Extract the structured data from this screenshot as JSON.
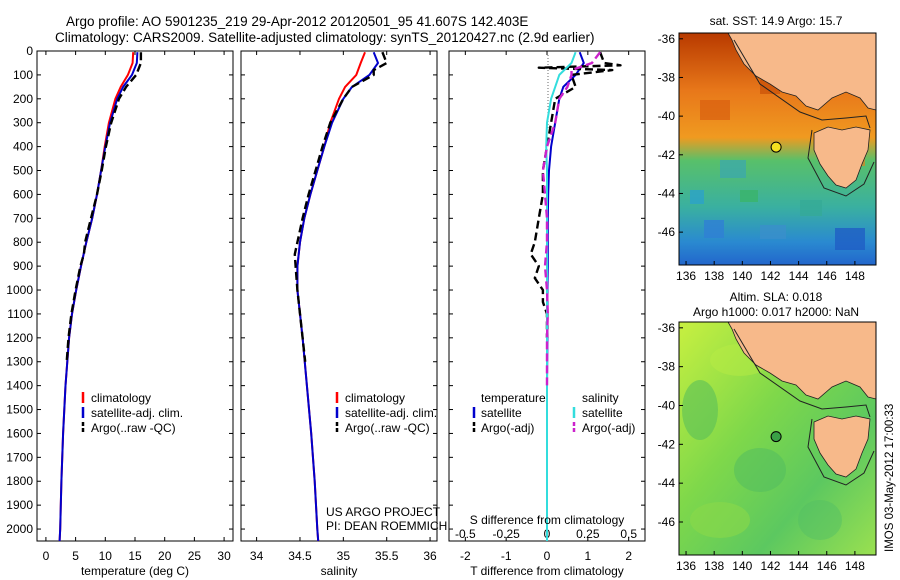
{
  "header": {
    "title_line1": "Argo profile: AO 5901235_219 29-Apr-2012 20120501_95 41.607S 142.403E",
    "title_line2": "Climatology: CARS2009. Satellite-adjusted climatology: synTS_20120427.nc (2.9d earlier)"
  },
  "footer": {
    "project_line1": "US ARGO PROJECT",
    "project_line2": "PI: DEAN ROEMMICH",
    "imos_stamp": "IMOS 03-May-2012 17:00:33"
  },
  "colors": {
    "climatology": "#ff0000",
    "satellite": "#0000cc",
    "argo": "#000000",
    "sal_satellite": "#33dddd",
    "sal_argo": "#cc22cc",
    "land": "#f7b98a"
  },
  "chart_data": [
    {
      "type": "line",
      "id": "temperature",
      "xlabel": "temperature (deg C)",
      "ylim": [
        2050,
        0
      ],
      "xlim": [
        -1.5,
        31.5
      ],
      "xticks": [
        0,
        5,
        10,
        15,
        20,
        25,
        30
      ],
      "yticks": [
        0,
        100,
        200,
        300,
        400,
        500,
        600,
        700,
        800,
        900,
        1000,
        1100,
        1200,
        1300,
        1400,
        1500,
        1600,
        1700,
        1800,
        1900,
        2000
      ],
      "legend": [
        "climatology",
        "satellite-adj. clim.",
        "Argo(..raw -QC)"
      ],
      "series": [
        {
          "name": "climatology",
          "color": "#ff0000",
          "dash": "none",
          "depth": [
            5,
            50,
            100,
            150,
            200,
            300,
            400,
            500,
            600,
            700,
            800,
            900,
            1000,
            1100,
            1200,
            1400,
            1600,
            1800,
            2000,
            2050
          ],
          "values": [
            14.7,
            14.6,
            13.8,
            12.6,
            11.7,
            10.6,
            9.9,
            9.3,
            8.6,
            7.8,
            6.8,
            5.9,
            5.1,
            4.4,
            3.9,
            3.3,
            2.9,
            2.6,
            2.4,
            2.3
          ]
        },
        {
          "name": "satellite-adj. clim.",
          "color": "#0000cc",
          "dash": "none",
          "depth": [
            5,
            50,
            100,
            150,
            200,
            300,
            400,
            500,
            600,
            700,
            800,
            900,
            1000,
            1100,
            1200,
            1400,
            1600,
            1800,
            2000,
            2050
          ],
          "values": [
            15.4,
            15.3,
            14.5,
            13.0,
            12.0,
            10.8,
            10.0,
            9.3,
            8.6,
            7.8,
            6.8,
            5.9,
            5.1,
            4.4,
            3.9,
            3.3,
            2.9,
            2.6,
            2.4,
            2.3
          ]
        },
        {
          "name": "Argo(..raw -QC)",
          "color": "#000000",
          "dash": "8,4",
          "depth": [
            5,
            50,
            100,
            150,
            200,
            300,
            400,
            500,
            600,
            700,
            800,
            850,
            900,
            1000,
            1100,
            1200,
            1300
          ],
          "values": [
            16.0,
            16.0,
            15.2,
            13.5,
            12.3,
            11.0,
            10.1,
            9.4,
            8.6,
            7.6,
            6.6,
            6.4,
            5.8,
            5.0,
            4.3,
            3.8,
            3.5
          ]
        }
      ]
    },
    {
      "type": "line",
      "id": "salinity",
      "xlabel": "salinity",
      "ylim": [
        2050,
        0
      ],
      "xlim": [
        33.82,
        36.08
      ],
      "xticks": [
        34,
        34.5,
        35,
        35.5,
        36
      ],
      "legend": [
        "climatology",
        "satellite-adj. clim.",
        "Argo(..raw -QC)"
      ],
      "series": [
        {
          "name": "climatology",
          "color": "#ff0000",
          "dash": "none",
          "depth": [
            5,
            50,
            100,
            150,
            200,
            300,
            400,
            500,
            600,
            700,
            800,
            900,
            1000,
            1100,
            1200,
            1400,
            1600,
            1800,
            2000,
            2050
          ],
          "values": [
            35.25,
            35.2,
            35.15,
            35.02,
            34.95,
            34.85,
            34.78,
            34.7,
            34.62,
            34.55,
            34.5,
            34.47,
            34.47,
            34.5,
            34.53,
            34.58,
            34.63,
            34.67,
            34.7,
            34.71
          ]
        },
        {
          "name": "satellite-adj. clim.",
          "color": "#0000cc",
          "dash": "none",
          "depth": [
            5,
            50,
            100,
            150,
            200,
            300,
            400,
            500,
            600,
            700,
            800,
            900,
            1000,
            1100,
            1200,
            1400,
            1600,
            1800,
            2000,
            2050
          ],
          "values": [
            35.35,
            35.4,
            35.3,
            35.1,
            35.0,
            34.87,
            34.78,
            34.7,
            34.62,
            34.55,
            34.5,
            34.47,
            34.47,
            34.5,
            34.53,
            34.58,
            34.63,
            34.67,
            34.7,
            34.71
          ]
        },
        {
          "name": "Argo(..raw -QC)",
          "color": "#000000",
          "dash": "8,4",
          "depth": [
            5,
            50,
            80,
            100,
            150,
            200,
            300,
            400,
            500,
            600,
            700,
            800,
            850,
            900,
            1000,
            1100,
            1200,
            1300
          ],
          "values": [
            35.45,
            35.5,
            35.35,
            35.35,
            35.1,
            35.0,
            34.85,
            34.76,
            34.68,
            34.6,
            34.53,
            34.47,
            34.44,
            34.45,
            34.47,
            34.5,
            34.53,
            34.56
          ]
        }
      ]
    },
    {
      "type": "line",
      "id": "difference",
      "xlabel": "T difference from climatology",
      "x2label": "S difference from climatology",
      "ylim": [
        2050,
        0
      ],
      "xlim": [
        -2.4,
        2.4
      ],
      "xticks": [
        -2,
        -1,
        0,
        1,
        2
      ],
      "x2ticks": [
        -0.5,
        -0.25,
        0,
        0.25,
        0.5
      ],
      "legend_temperature_title": "temperature",
      "legend_salinity_title": "salinity",
      "legend_temperature": [
        "satellite",
        "Argo(-adj)"
      ],
      "legend_salinity": [
        "satellite",
        "Argo(-adj)"
      ],
      "series": [
        {
          "name": "satellite",
          "color": "#0000cc",
          "dash": "none",
          "depth": [
            5,
            50,
            100,
            150,
            200,
            300,
            400,
            500,
            600,
            700,
            800,
            900,
            1000,
            1100,
            1200,
            1400,
            1600,
            1800,
            2000,
            2050
          ],
          "values": [
            0.8,
            0.9,
            0.7,
            0.4,
            0.3,
            0.2,
            0.1,
            0.05,
            0.03,
            0.02,
            0.02,
            0.02,
            0.01,
            0.01,
            0.01,
            0.0,
            0.0,
            0.0,
            0.0,
            0.0
          ]
        },
        {
          "name": "Argo(-adj)",
          "color": "#000000",
          "dash": "8,4",
          "depth": [
            5,
            50,
            60,
            70,
            80,
            100,
            150,
            200,
            300,
            400,
            500,
            600,
            700,
            800,
            850,
            900,
            950,
            1000,
            1050,
            1100,
            1200
          ],
          "values": [
            1.3,
            1.4,
            1.8,
            -0.2,
            1.6,
            0.6,
            0.7,
            0.2,
            0.1,
            0.0,
            -0.1,
            -0.1,
            -0.2,
            -0.3,
            -0.4,
            -0.2,
            -0.3,
            -0.1,
            -0.1,
            0.0,
            0.0
          ]
        },
        {
          "name": "satellite",
          "color": "#33dddd",
          "dash": "none",
          "depth": [
            5,
            50,
            100,
            150,
            200,
            300,
            400,
            500,
            600,
            700,
            800,
            900,
            1000,
            1100,
            1200,
            1400,
            1600,
            1800,
            2000,
            2050
          ],
          "values": [
            0.7,
            0.6,
            0.3,
            0.2,
            0.1,
            0.0,
            -0.02,
            0.0,
            0.0,
            0.0,
            0.0,
            0.0,
            0.0,
            0.0,
            0.0,
            0.0,
            0.0,
            0.0,
            0.0,
            0.0
          ]
        },
        {
          "name": "Argo(-adj)",
          "color": "#cc22cc",
          "dash": "8,4",
          "depth": [
            5,
            50,
            80,
            100,
            150,
            200,
            300,
            400,
            500,
            600,
            700,
            800,
            900,
            1000,
            1100,
            1200,
            1300,
            1400
          ],
          "values": [
            1.3,
            1.1,
            0.6,
            0.6,
            0.5,
            0.3,
            0.2,
            0.0,
            -0.1,
            -0.05,
            0.0,
            0.0,
            -0.05,
            0.0,
            0.02,
            0.0,
            0.0,
            0.0
          ]
        }
      ]
    }
  ],
  "maps": [
    {
      "id": "sst",
      "title": "sat. SST: 14.9 Argo: 15.7",
      "subtitle": "",
      "xticks": [
        136,
        138,
        140,
        142,
        144,
        146,
        148
      ],
      "yticks": [
        -36,
        -38,
        -40,
        -42,
        -44,
        -46
      ],
      "lon_range": [
        135.5,
        149.5
      ],
      "lat_range": [
        -47.7,
        -35.7
      ],
      "argo_lon": 142.4,
      "argo_lat": -41.6
    },
    {
      "id": "sla",
      "title": "Altim. SLA: 0.018",
      "subtitle": "Argo h1000: 0.017 h2000: NaN",
      "xticks": [
        136,
        138,
        140,
        142,
        144,
        146,
        148
      ],
      "yticks": [
        -36,
        -38,
        -40,
        -42,
        -44,
        -46
      ],
      "lon_range": [
        135.5,
        149.5
      ],
      "lat_range": [
        -47.7,
        -35.7
      ],
      "argo_lon": 142.4,
      "argo_lat": -41.6
    }
  ]
}
